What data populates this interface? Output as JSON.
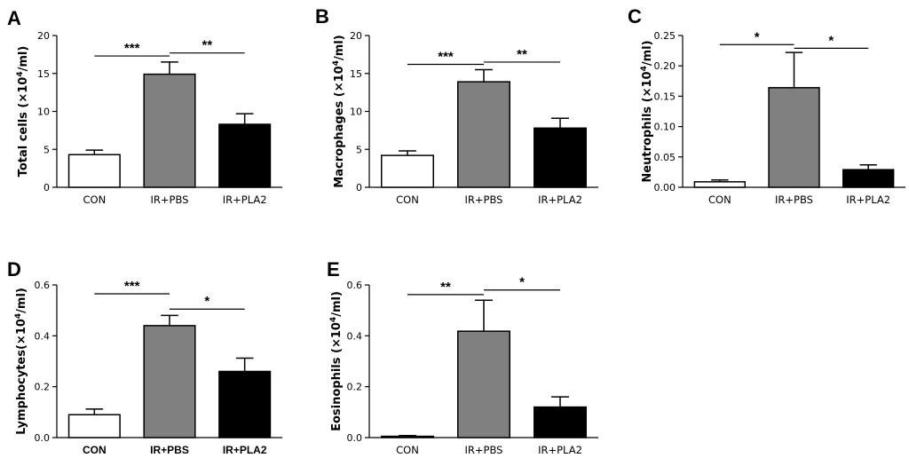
{
  "chart_data": [
    {
      "panel": "A",
      "type": "bar",
      "ylabel": "Total cells (×10",
      "ylabel_sup": "4",
      "ylabel_end": "/ml)",
      "categories": [
        "CON",
        "IR+PBS",
        "IR+PLA2"
      ],
      "values": [
        4.3,
        14.9,
        8.3
      ],
      "errors": [
        0.6,
        1.6,
        1.4
      ],
      "colors": [
        "#ffffff",
        "#808080",
        "#000000"
      ],
      "ylim": [
        0,
        20
      ],
      "yticks": [
        0,
        5,
        10,
        15,
        20
      ],
      "yticklabels": [
        "0",
        "5",
        "10",
        "15",
        "20"
      ],
      "bold_categories": false,
      "significance": [
        {
          "from": 0,
          "to": 1,
          "y": 17.3,
          "label": "***"
        },
        {
          "from": 1,
          "to": 2,
          "y": 17.7,
          "label": "**"
        }
      ]
    },
    {
      "panel": "B",
      "type": "bar",
      "ylabel": "Macrophages (×10",
      "ylabel_sup": "4",
      "ylabel_end": "/ml)",
      "categories": [
        "CON",
        "IR+PBS",
        "IR+PLA2"
      ],
      "values": [
        4.2,
        13.9,
        7.8
      ],
      "errors": [
        0.6,
        1.6,
        1.3
      ],
      "colors": [
        "#ffffff",
        "#808080",
        "#000000"
      ],
      "ylim": [
        0,
        20
      ],
      "yticks": [
        0,
        5,
        10,
        15,
        20
      ],
      "yticklabels": [
        "0",
        "5",
        "10",
        "15",
        "20"
      ],
      "bold_categories": false,
      "significance": [
        {
          "from": 0,
          "to": 1,
          "y": 16.2,
          "label": "***"
        },
        {
          "from": 1,
          "to": 2,
          "y": 16.5,
          "label": "**"
        }
      ]
    },
    {
      "panel": "C",
      "type": "bar",
      "ylabel": "Neutrophils (×10",
      "ylabel_sup": "4",
      "ylabel_end": "/ml)",
      "categories": [
        "CON",
        "IR+PBS",
        "IR+PLA2"
      ],
      "values": [
        0.009,
        0.164,
        0.029
      ],
      "errors": [
        0.003,
        0.058,
        0.008
      ],
      "colors": [
        "#ffffff",
        "#808080",
        "#000000"
      ],
      "ylim": [
        0,
        0.25
      ],
      "yticks": [
        0,
        0.05,
        0.1,
        0.15,
        0.2,
        0.25
      ],
      "yticklabels": [
        "0.00",
        "0.05",
        "0.10",
        "0.15",
        "0.20",
        "0.25"
      ],
      "bold_categories": false,
      "significance": [
        {
          "from": 0,
          "to": 1,
          "y": 0.235,
          "label": "*"
        },
        {
          "from": 1,
          "to": 2,
          "y": 0.229,
          "label": "*"
        }
      ]
    },
    {
      "panel": "D",
      "type": "bar",
      "ylabel": "Lymphocytes(×10",
      "ylabel_sup": "4",
      "ylabel_end": "/ml)",
      "categories": [
        "CON",
        "IR+PBS",
        "IR+PLA2"
      ],
      "values": [
        0.09,
        0.44,
        0.26
      ],
      "errors": [
        0.022,
        0.04,
        0.052
      ],
      "colors": [
        "#ffffff",
        "#808080",
        "#000000"
      ],
      "ylim": [
        0,
        0.6
      ],
      "yticks": [
        0,
        0.2,
        0.4,
        0.6
      ],
      "yticklabels": [
        "0.0",
        "0.2",
        "0.4",
        "0.6"
      ],
      "bold_categories": true,
      "significance": [
        {
          "from": 0,
          "to": 1,
          "y": 0.565,
          "label": "***"
        },
        {
          "from": 1,
          "to": 2,
          "y": 0.505,
          "label": "*"
        }
      ]
    },
    {
      "panel": "E",
      "type": "bar",
      "ylabel": "Eosinophils (×10",
      "ylabel_sup": "4",
      "ylabel_end": "/ml)",
      "categories": [
        "CON",
        "IR+PBS",
        "IR+PLA2"
      ],
      "values": [
        0.005,
        0.418,
        0.12
      ],
      "errors": [
        0.003,
        0.122,
        0.04
      ],
      "colors": [
        "#ffffff",
        "#808080",
        "#000000"
      ],
      "ylim": [
        0,
        0.6
      ],
      "yticks": [
        0,
        0.2,
        0.4,
        0.6
      ],
      "yticklabels": [
        "0.0",
        "0.2",
        "0.4",
        "0.6"
      ],
      "bold_categories": false,
      "significance": [
        {
          "from": 0,
          "to": 1,
          "y": 0.562,
          "label": "**"
        },
        {
          "from": 1,
          "to": 2,
          "y": 0.58,
          "label": "*"
        }
      ]
    }
  ]
}
